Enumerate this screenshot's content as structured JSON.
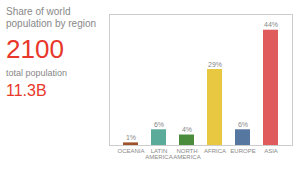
{
  "chart_data": {
    "type": "bar",
    "title": "Share of world\npopulation by region",
    "annotations": [
      {
        "text": "2100",
        "color": "#e8372a"
      },
      {
        "text": "total population"
      },
      {
        "text": "11.3B",
        "color": "#e8372a"
      }
    ],
    "categories": [
      "OCEANIA",
      "LATIN\nAMERICA",
      "NORTH\nAMERICA",
      "AFRICA",
      "EUROPE",
      "ASIA"
    ],
    "values": [
      1,
      6,
      4,
      29,
      6,
      44
    ],
    "value_labels": [
      "1%",
      "6%",
      "4%",
      "29%",
      "6%",
      "44%"
    ],
    "colors": [
      "#a0522d",
      "#5aab9a",
      "#4a8c3c",
      "#e8c840",
      "#5577a0",
      "#e05c5c"
    ],
    "ylim": [
      0,
      50
    ],
    "data_labels": true,
    "tick_labels": "x",
    "grid": false
  }
}
